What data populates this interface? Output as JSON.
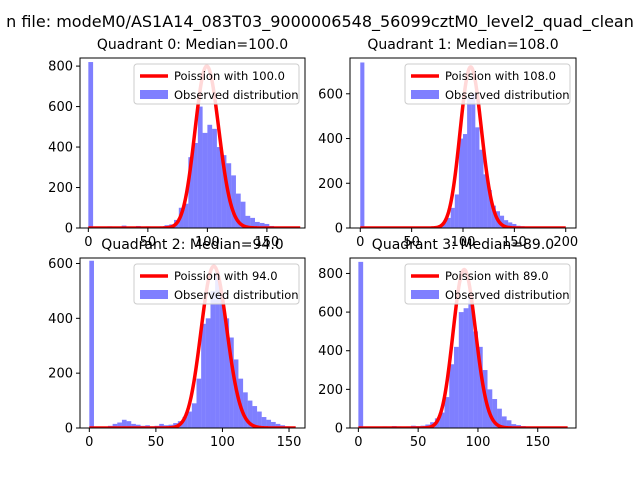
{
  "figure_title": "n file: modeM0/AS1A14_083T03_9000006548_56099cztM0_level2_quad_clean",
  "colors": {
    "fit": "#ff0000",
    "hist": "#0000ff",
    "axis": "#000000",
    "legend_border": "#cccccc"
  },
  "chart_data": [
    {
      "type": "bar",
      "title": "Quadrant 0: Median=100.0",
      "xlim": [
        -7,
        182
      ],
      "ylim": [
        0,
        840
      ],
      "xticks": [
        0,
        50,
        100,
        150
      ],
      "yticks": [
        0,
        200,
        400,
        600,
        800
      ],
      "legend": {
        "position": "top-right",
        "entries": [
          "Poission with 100.0",
          "Observed distribution"
        ]
      },
      "fit": {
        "label": "Poission with 100.0",
        "lambda": 100.0,
        "scale": 800,
        "range": [
          0,
          178
        ]
      },
      "hist": {
        "bins": [
          [
            0,
            4,
            820
          ],
          [
            4,
            8,
            3
          ],
          [
            8,
            12,
            5
          ],
          [
            12,
            16,
            4
          ],
          [
            16,
            20,
            8
          ],
          [
            20,
            24,
            5
          ],
          [
            24,
            28,
            6
          ],
          [
            28,
            32,
            12
          ],
          [
            32,
            36,
            7
          ],
          [
            36,
            40,
            5
          ],
          [
            40,
            44,
            10
          ],
          [
            44,
            48,
            6
          ],
          [
            48,
            52,
            8
          ],
          [
            52,
            56,
            5
          ],
          [
            56,
            60,
            6
          ],
          [
            60,
            64,
            8
          ],
          [
            64,
            68,
            14
          ],
          [
            68,
            72,
            18
          ],
          [
            72,
            76,
            40
          ],
          [
            76,
            80,
            100
          ],
          [
            80,
            84,
            120
          ],
          [
            84,
            88,
            350
          ],
          [
            88,
            92,
            420
          ],
          [
            92,
            96,
            600
          ],
          [
            96,
            100,
            470
          ],
          [
            100,
            104,
            510
          ],
          [
            104,
            108,
            490
          ],
          [
            108,
            112,
            400
          ],
          [
            112,
            116,
            360
          ],
          [
            116,
            120,
            320
          ],
          [
            120,
            124,
            260
          ],
          [
            124,
            128,
            170
          ],
          [
            128,
            132,
            130
          ],
          [
            132,
            136,
            60
          ],
          [
            136,
            140,
            50
          ],
          [
            140,
            144,
            30
          ],
          [
            144,
            148,
            25
          ],
          [
            148,
            152,
            20
          ],
          [
            152,
            156,
            10
          ],
          [
            156,
            160,
            6
          ],
          [
            160,
            164,
            5
          ],
          [
            164,
            168,
            4
          ],
          [
            168,
            172,
            3
          ],
          [
            172,
            176,
            2
          ],
          [
            176,
            180,
            1
          ]
        ]
      }
    },
    {
      "type": "bar",
      "title": "Quadrant 1: Median=108.0",
      "xlim": [
        -10,
        210
      ],
      "ylim": [
        0,
        760
      ],
      "xticks": [
        0,
        50,
        100,
        150,
        200
      ],
      "yticks": [
        0,
        200,
        400,
        600
      ],
      "legend": {
        "position": "top-right",
        "entries": [
          "Poission with 108.0",
          "Observed distribution"
        ]
      },
      "fit": {
        "label": "Poission with 108.0",
        "lambda": 108.0,
        "scale": 720,
        "range": [
          0,
          200
        ]
      },
      "hist": {
        "bins": [
          [
            0,
            4,
            740
          ],
          [
            4,
            8,
            4
          ],
          [
            8,
            12,
            2
          ],
          [
            12,
            16,
            3
          ],
          [
            16,
            20,
            2
          ],
          [
            20,
            24,
            4
          ],
          [
            24,
            28,
            2
          ],
          [
            28,
            32,
            3
          ],
          [
            32,
            36,
            2
          ],
          [
            36,
            40,
            2
          ],
          [
            40,
            44,
            3
          ],
          [
            44,
            48,
            2
          ],
          [
            48,
            52,
            3
          ],
          [
            52,
            56,
            2
          ],
          [
            56,
            60,
            2
          ],
          [
            60,
            64,
            3
          ],
          [
            64,
            68,
            4
          ],
          [
            68,
            72,
            5
          ],
          [
            72,
            76,
            8
          ],
          [
            76,
            80,
            12
          ],
          [
            80,
            84,
            25
          ],
          [
            84,
            88,
            45
          ],
          [
            88,
            92,
            90
          ],
          [
            92,
            96,
            150
          ],
          [
            96,
            100,
            400
          ],
          [
            100,
            104,
            420
          ],
          [
            104,
            108,
            580
          ],
          [
            108,
            112,
            600
          ],
          [
            112,
            116,
            450
          ],
          [
            116,
            120,
            350
          ],
          [
            120,
            124,
            240
          ],
          [
            124,
            128,
            170
          ],
          [
            128,
            132,
            100
          ],
          [
            132,
            136,
            75
          ],
          [
            136,
            140,
            55
          ],
          [
            140,
            144,
            35
          ],
          [
            144,
            148,
            25
          ],
          [
            148,
            152,
            18
          ],
          [
            152,
            156,
            10
          ],
          [
            156,
            160,
            8
          ],
          [
            160,
            164,
            5
          ],
          [
            164,
            168,
            4
          ],
          [
            168,
            172,
            3
          ],
          [
            172,
            176,
            2
          ],
          [
            176,
            180,
            2
          ],
          [
            180,
            184,
            1
          ],
          [
            184,
            188,
            1
          ],
          [
            188,
            192,
            1
          ],
          [
            192,
            196,
            1
          ],
          [
            196,
            200,
            1
          ]
        ]
      }
    },
    {
      "type": "bar",
      "title": "Quadrant 2: Median=94.0",
      "xlim": [
        -7,
        162
      ],
      "ylim": [
        0,
        620
      ],
      "xticks": [
        0,
        50,
        100,
        150
      ],
      "yticks": [
        0,
        200,
        400,
        600
      ],
      "legend": {
        "position": "top-right",
        "entries": [
          "Poission with 94.0",
          "Observed distribution"
        ]
      },
      "fit": {
        "label": "Poission with 94.0",
        "lambda": 94.0,
        "scale": 590,
        "range": [
          0,
          155
        ]
      },
      "hist": {
        "bins": [
          [
            0,
            3.5,
            610
          ],
          [
            3.5,
            7,
            4
          ],
          [
            7,
            10.5,
            3
          ],
          [
            10.5,
            14,
            5
          ],
          [
            14,
            17.5,
            8
          ],
          [
            17.5,
            21,
            15
          ],
          [
            21,
            24.5,
            20
          ],
          [
            24.5,
            28,
            30
          ],
          [
            28,
            31.5,
            25
          ],
          [
            31.5,
            35,
            15
          ],
          [
            35,
            38.5,
            12
          ],
          [
            38.5,
            42,
            8
          ],
          [
            42,
            45.5,
            10
          ],
          [
            45.5,
            49,
            6
          ],
          [
            49,
            52.5,
            8
          ],
          [
            52.5,
            56,
            15
          ],
          [
            56,
            59.5,
            10
          ],
          [
            59.5,
            63,
            12
          ],
          [
            63,
            66.5,
            18
          ],
          [
            66.5,
            70,
            25
          ],
          [
            70,
            73.5,
            40
          ],
          [
            73.5,
            77,
            60
          ],
          [
            77,
            80.5,
            90
          ],
          [
            80.5,
            84,
            180
          ],
          [
            84,
            87.5,
            380
          ],
          [
            87.5,
            91,
            400
          ],
          [
            91,
            94.5,
            500
          ],
          [
            94.5,
            98,
            570
          ],
          [
            98,
            101.5,
            480
          ],
          [
            101.5,
            105,
            400
          ],
          [
            105,
            108.5,
            330
          ],
          [
            108.5,
            112,
            250
          ],
          [
            112,
            115.5,
            180
          ],
          [
            115.5,
            119,
            130
          ],
          [
            119,
            122.5,
            100
          ],
          [
            122.5,
            126,
            80
          ],
          [
            126,
            129.5,
            60
          ],
          [
            129.5,
            133,
            40
          ],
          [
            133,
            136.5,
            30
          ],
          [
            136.5,
            140,
            22
          ],
          [
            140,
            143.5,
            15
          ],
          [
            143.5,
            147,
            10
          ],
          [
            147,
            150.5,
            6
          ],
          [
            150.5,
            154,
            3
          ]
        ]
      }
    },
    {
      "type": "bar",
      "title": "Quadrant 3: Median=89.0",
      "xlim": [
        -7,
        182
      ],
      "ylim": [
        0,
        880
      ],
      "xticks": [
        0,
        50,
        100,
        150
      ],
      "yticks": [
        0,
        200,
        400,
        600,
        800
      ],
      "legend": {
        "position": "top-right",
        "entries": [
          "Poission with 89.0",
          "Observed distribution"
        ]
      },
      "fit": {
        "label": "Poission with 89.0",
        "lambda": 89.0,
        "scale": 820,
        "range": [
          0,
          175
        ]
      },
      "hist": {
        "bins": [
          [
            0,
            4,
            860
          ],
          [
            4,
            8,
            4
          ],
          [
            8,
            12,
            3
          ],
          [
            12,
            16,
            2
          ],
          [
            16,
            20,
            5
          ],
          [
            20,
            24,
            8
          ],
          [
            24,
            28,
            6
          ],
          [
            28,
            32,
            10
          ],
          [
            32,
            36,
            8
          ],
          [
            36,
            40,
            6
          ],
          [
            40,
            44,
            8
          ],
          [
            44,
            48,
            12
          ],
          [
            48,
            52,
            10
          ],
          [
            52,
            56,
            12
          ],
          [
            56,
            60,
            18
          ],
          [
            60,
            64,
            30
          ],
          [
            64,
            68,
            50
          ],
          [
            68,
            72,
            80
          ],
          [
            72,
            76,
            160
          ],
          [
            76,
            80,
            330
          ],
          [
            80,
            84,
            420
          ],
          [
            84,
            88,
            600
          ],
          [
            88,
            92,
            620
          ],
          [
            92,
            96,
            680
          ],
          [
            96,
            100,
            500
          ],
          [
            100,
            104,
            420
          ],
          [
            104,
            108,
            300
          ],
          [
            108,
            112,
            200
          ],
          [
            112,
            116,
            150
          ],
          [
            116,
            120,
            100
          ],
          [
            120,
            124,
            60
          ],
          [
            124,
            128,
            40
          ],
          [
            128,
            132,
            20
          ],
          [
            132,
            136,
            15
          ],
          [
            136,
            140,
            10
          ],
          [
            140,
            144,
            8
          ],
          [
            144,
            148,
            5
          ],
          [
            148,
            152,
            3
          ],
          [
            152,
            156,
            2
          ],
          [
            156,
            160,
            2
          ],
          [
            160,
            164,
            1
          ],
          [
            164,
            168,
            1
          ],
          [
            168,
            172,
            1
          ]
        ]
      }
    }
  ]
}
